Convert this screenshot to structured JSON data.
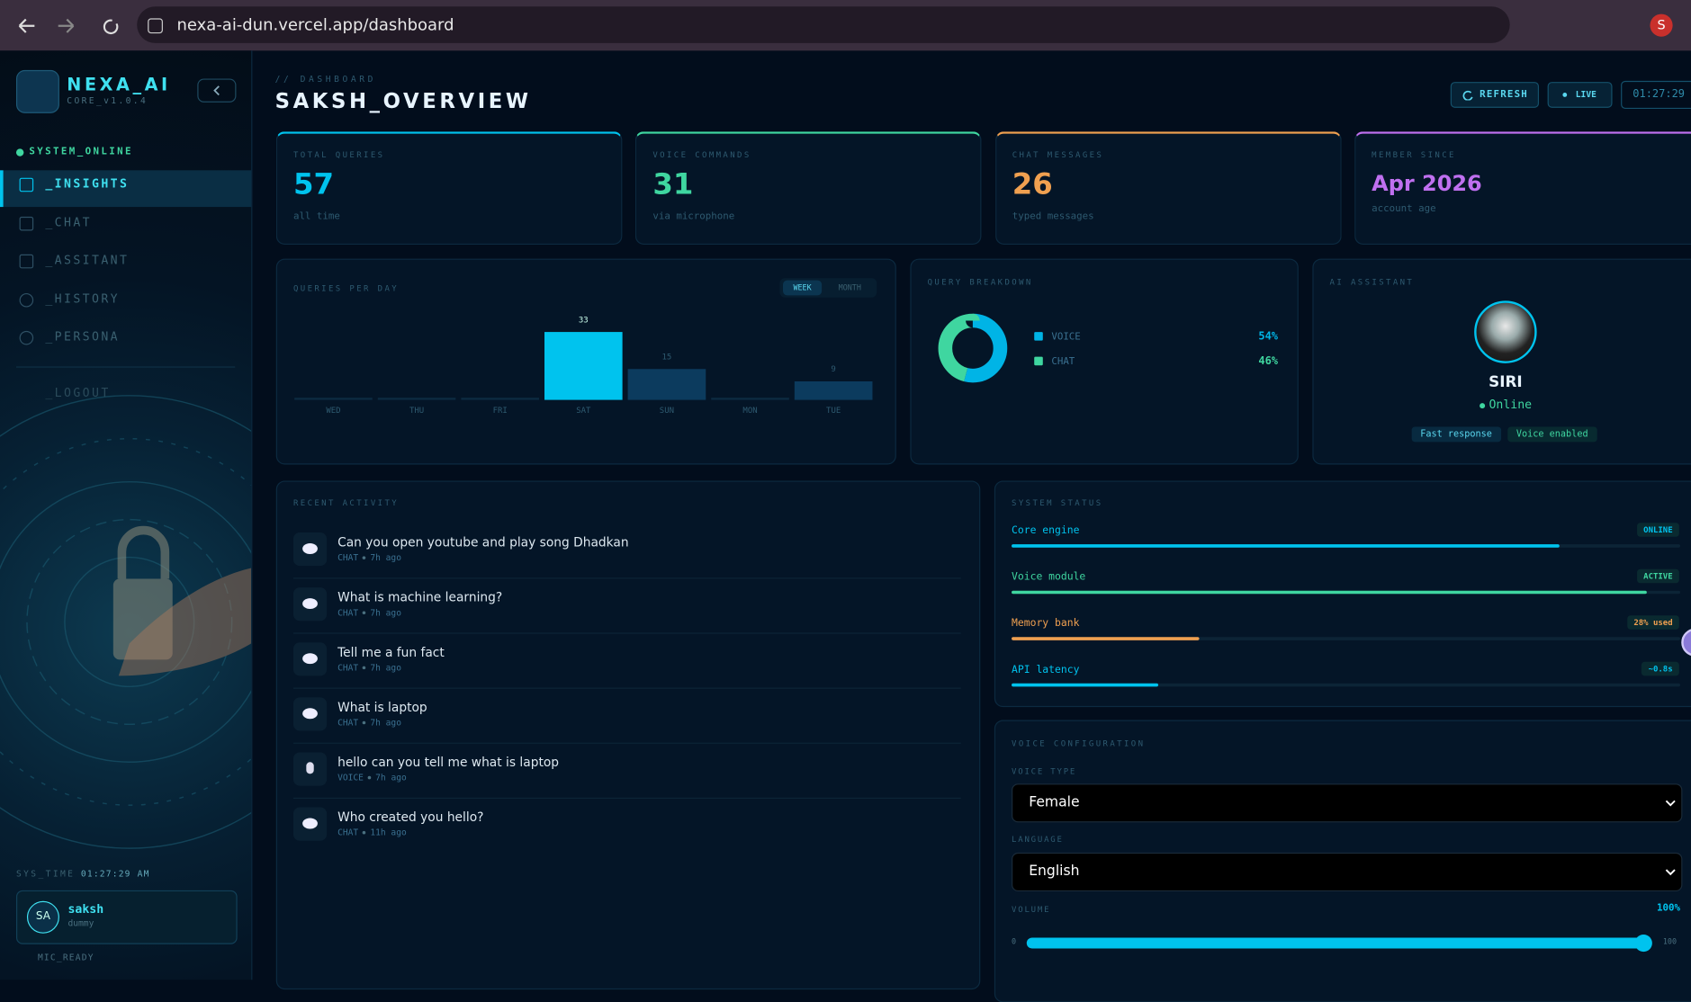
{
  "browser": {
    "url": "nexa-ai-dun.vercel.app/dashboard",
    "profile_initial": "S"
  },
  "sidebar": {
    "logo": "NEXA_AI",
    "version": "CORE_v1.0.4",
    "status": "SYSTEM_ONLINE",
    "nav": [
      "_INSIGHTS",
      "_CHAT",
      "_ASSITANT",
      "_HISTORY",
      "_PERSONA"
    ],
    "logout": "_LOGOUT",
    "sys_time_label": "SYS_TIME",
    "sys_time": "01:27:29 AM",
    "user": {
      "initials": "SA",
      "name": "saksh",
      "role": "dummy"
    },
    "mic": "MIC_READY"
  },
  "header": {
    "breadcrumb": "// DASHBOARD",
    "title": "SAKSH_OVERVIEW",
    "refresh": "REFRESH",
    "live": "LIVE",
    "time": "01:27:29"
  },
  "stats": [
    {
      "label": "TOTAL QUERIES",
      "value": "57",
      "sub": "all time"
    },
    {
      "label": "VOICE COMMANDS",
      "value": "31",
      "sub": "via microphone"
    },
    {
      "label": "CHAT MESSAGES",
      "value": "26",
      "sub": "typed messages"
    },
    {
      "label": "MEMBER SINCE",
      "value": "Apr 2026",
      "sub": "account age"
    }
  ],
  "queries_chart": {
    "type": "bar",
    "title": "QUERIES PER DAY",
    "tabs": [
      "WEEK",
      "MONTH"
    ],
    "categories": [
      "WED",
      "THU",
      "FRI",
      "SAT",
      "SUN",
      "MON",
      "TUE"
    ],
    "values": [
      0,
      0,
      0,
      33,
      15,
      0,
      9
    ],
    "color": "#0c3b5e",
    "highlight_color": "#00c3ee"
  },
  "query_breakdown": {
    "type": "pie",
    "title": "QUERY BREAKDOWN",
    "categories": [
      "VOICE",
      "CHAT"
    ],
    "values": [
      54,
      46
    ],
    "value_labels": [
      "54%",
      "46%"
    ],
    "colors": [
      "#00b4e6",
      "#3fd6a0"
    ]
  },
  "assistant": {
    "title": "AI ASSISTANT",
    "name": "SIRI",
    "status": "Online",
    "tags": [
      "Fast response",
      "Voice enabled"
    ]
  },
  "activity": {
    "title": "RECENT ACTIVITY",
    "items": [
      {
        "text": "Can you open youtube and play song Dhadkan",
        "type": "CHAT",
        "time": "7h ago"
      },
      {
        "text": "What is machine learning?",
        "type": "CHAT",
        "time": "7h ago"
      },
      {
        "text": "Tell me a fun fact",
        "type": "CHAT",
        "time": "7h ago"
      },
      {
        "text": "What is laptop",
        "type": "CHAT",
        "time": "7h ago"
      },
      {
        "text": "hello can you tell me what is laptop",
        "type": "VOICE",
        "time": "7h ago"
      },
      {
        "text": "Who created you hello?",
        "type": "CHAT",
        "time": "11h ago"
      }
    ]
  },
  "system_status": {
    "title": "SYSTEM STATUS",
    "items": [
      {
        "name": "Core engine",
        "status": "ONLINE",
        "level": 82,
        "color": "#00c3ee"
      },
      {
        "name": "Voice module",
        "status": "ACTIVE",
        "level": 95,
        "color": "#3fd6a0"
      },
      {
        "name": "Memory bank",
        "status": "28% used",
        "level": 28,
        "color": "#f0a050"
      },
      {
        "name": "API latency",
        "status": "~0.8s",
        "level": 22,
        "color": "#00c3ee"
      }
    ]
  },
  "voice_config": {
    "title": "VOICE CONFIGURATION",
    "voice_type_label": "VOICE TYPE",
    "voice_type": "Female",
    "language_label": "LANGUAGE",
    "language": "English",
    "volume": {
      "label": "VOLUME",
      "value": 100,
      "value_label": "100%",
      "min": 0,
      "max": 100
    }
  }
}
